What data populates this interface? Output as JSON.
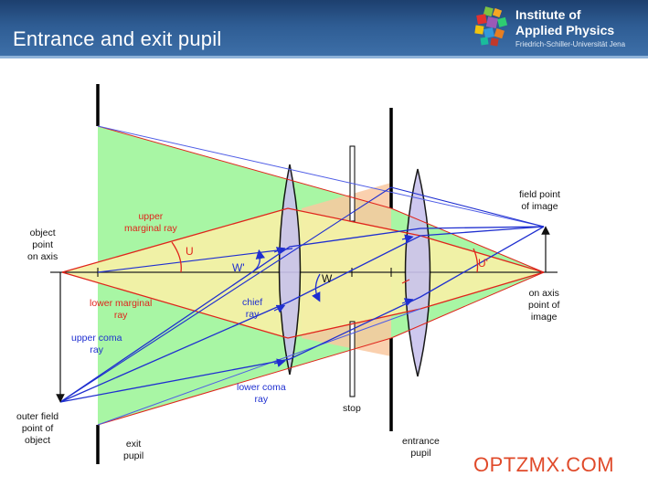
{
  "header": {
    "title": "Entrance and exit pupil",
    "institute_line1": "Institute of",
    "institute_line2": "Applied Physics",
    "university": "Friedrich-Schiller-Universität Jena",
    "logo_icon": "ipp-mosaic-logo-icon"
  },
  "labels": {
    "object_point_1": "object",
    "object_point_2": "point",
    "object_point_3": "on axis",
    "upper_marginal_1": "upper",
    "upper_marginal_2": "marginal ray",
    "angle_u": "U",
    "angle_w_prime": "W'",
    "angle_w": "W",
    "angle_u_prime": "U'",
    "lower_marginal_1": "lower marginal",
    "lower_marginal_2": "ray",
    "chief_1": "chief",
    "chief_2": "ray",
    "upper_coma_1": "upper coma",
    "upper_coma_2": "ray",
    "lower_coma_1": "lower coma",
    "lower_coma_2": "ray",
    "outer_field_1": "outer field",
    "outer_field_2": "point of",
    "outer_field_3": "object",
    "exit_pupil_1": "exit",
    "exit_pupil_2": "pupil",
    "stop": "stop",
    "entrance_pupil_1": "entrance",
    "entrance_pupil_2": "pupil",
    "field_image_1": "field point",
    "field_image_2": "of image",
    "axis_image_1": "on axis",
    "axis_image_2": "point of",
    "axis_image_3": "image"
  },
  "colors": {
    "header_bg": "#2e5c93",
    "green_region": "#9ef59a",
    "yellow_region": "#f3f0a6",
    "orange_region": "#f9c8a0",
    "lens_fill": "#c9c3ee",
    "red_ray": "#e0241b",
    "blue_ray": "#1f2fd0"
  },
  "watermark": "OPTZMX.COM"
}
